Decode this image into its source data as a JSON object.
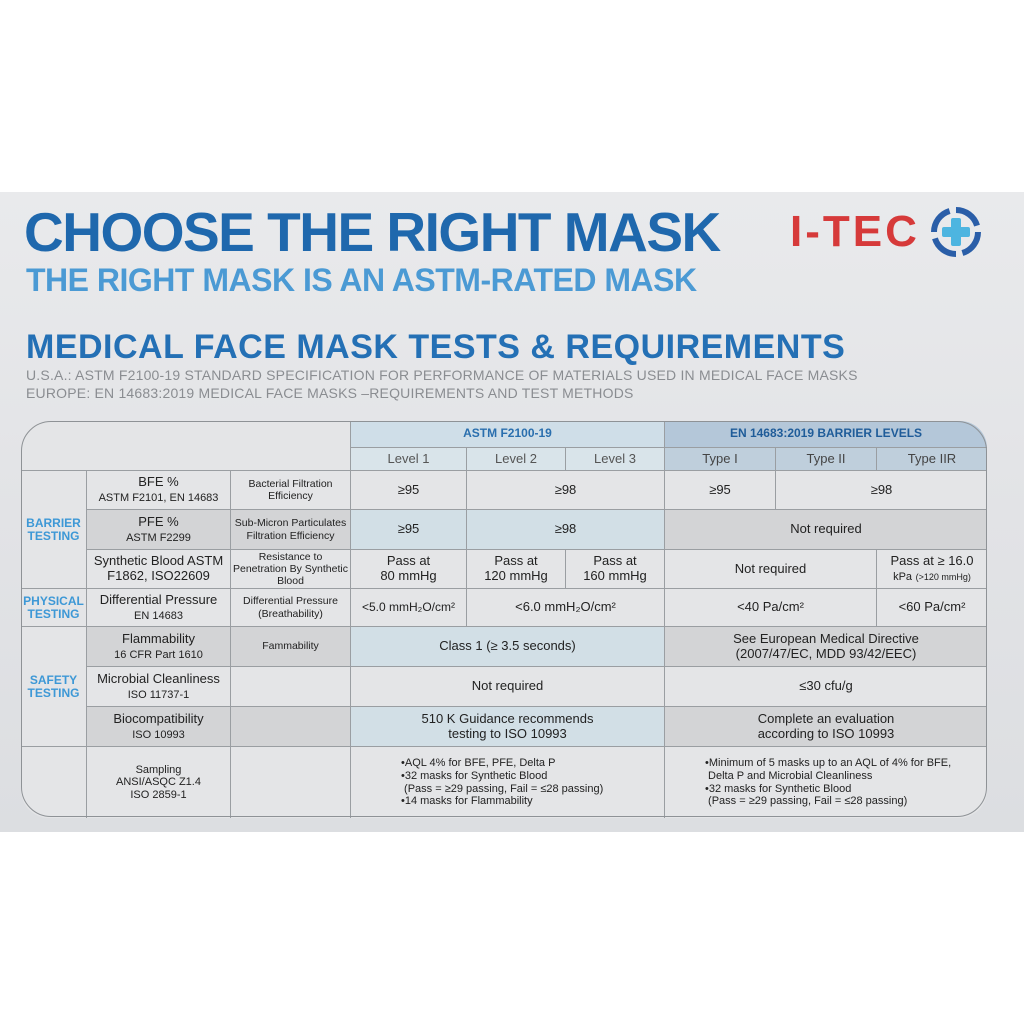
{
  "header": {
    "title": "CHOOSE THE RIGHT MASK",
    "subtitle": "THE RIGHT MASK IS AN ASTM-RATED MASK",
    "logo_text": "I-TEC",
    "section_title": "MEDICAL FACE MASK TESTS & REQUIREMENTS",
    "note_us": "U.S.A.: ASTM F2100-19 STANDARD SPECIFICATION FOR PERFORMANCE OF MATERIALS USED IN MEDICAL FACE MASKS",
    "note_eu": "EUROPE: EN 14683:2019 MEDICAL FACE MASKS –REQUIREMENTS AND TEST METHODS"
  },
  "colors": {
    "title": "#1f68ad",
    "subtitle": "#4b9ad4",
    "logo_red": "#d63a3a",
    "logo_blue": "#2a5ea8",
    "logo_cross": "#4db5e0"
  },
  "table": {
    "astm_header": "ASTM F2100-19",
    "en_header": "EN 14683:2019 BARRIER LEVELS",
    "levels": [
      "Level 1",
      "Level 2",
      "Level 3"
    ],
    "types": [
      "Type I",
      "Type II",
      "Type IIR"
    ],
    "sections": {
      "barrier": "BARRIER TESTING",
      "physical": "PHYSICAL TESTING",
      "safety": "SAFETY TESTING"
    },
    "rows": {
      "bfe": {
        "name": "BFE %",
        "std": "ASTM F2101, EN 14683",
        "desc": "Bacterial Filtration Efficiency",
        "l1": "≥95",
        "l23": "≥98",
        "t1": "≥95",
        "t2r": "≥98"
      },
      "pfe": {
        "name": "PFE %",
        "std": "ASTM F2299",
        "desc": "Sub-Micron Particulates Filtration Efficiency",
        "l1": "≥95",
        "l23": "≥98",
        "en": "Not required"
      },
      "blood": {
        "name": "Synthetic Blood ASTM",
        "std": "F1862, ISO22609",
        "desc": "Resistance to Penetration By Synthetic Blood",
        "l1a": "Pass at",
        "l1b": "80 mmHg",
        "l2a": "Pass at",
        "l2b": "120 mmHg",
        "l3a": "Pass at",
        "l3b": "160 mmHg",
        "t12": "Not required",
        "tra": "Pass at ≥ 16.0",
        "trb": "kPa",
        "trc": "(>120 mmHg)"
      },
      "dp": {
        "name": "Differential Pressure",
        "std": "EN 14683",
        "desc": "Differential Pressure (Breathability)",
        "l1": "<5.0 mmH₂O/cm²",
        "l23": "<6.0 mmH₂O/cm²",
        "t12": "<40 Pa/cm²",
        "tr": "<60 Pa/cm²"
      },
      "flam": {
        "name": "Flammability",
        "std": "16 CFR Part 1610",
        "desc": "Fammability",
        "astm": "Class 1 (≥ 3.5 seconds)",
        "en1": "See European Medical Directive",
        "en2": "(2007/47/EC, MDD 93/42/EEC)"
      },
      "micro": {
        "name": "Microbial Cleanliness",
        "std": "ISO 11737-1",
        "astm": "Not required",
        "en": "≤30 cfu/g"
      },
      "bio": {
        "name": "Biocompatibility",
        "std": "ISO 10993",
        "astm1": "510 K Guidance recommends",
        "astm2": "testing to ISO 10993",
        "en1": "Complete an evaluation",
        "en2": "according to ISO 10993"
      },
      "sampling": {
        "name": "Sampling",
        "std1": "ANSI/ASQC Z1.4",
        "std2": "ISO 2859-1",
        "astm": [
          "•AQL 4% for BFE, PFE, Delta P",
          "•32 masks for Synthetic Blood",
          " (Pass = ≥29 passing, Fail = ≤28 passing)",
          "•14 masks for Flammability"
        ],
        "en": [
          "•Minimum of 5 masks up to an AQL of 4% for BFE,",
          " Delta P and Microbial Cleanliness",
          "•32 masks for Synthetic Blood",
          " (Pass = ≥29 passing, Fail = ≤28 passing)"
        ]
      }
    }
  }
}
